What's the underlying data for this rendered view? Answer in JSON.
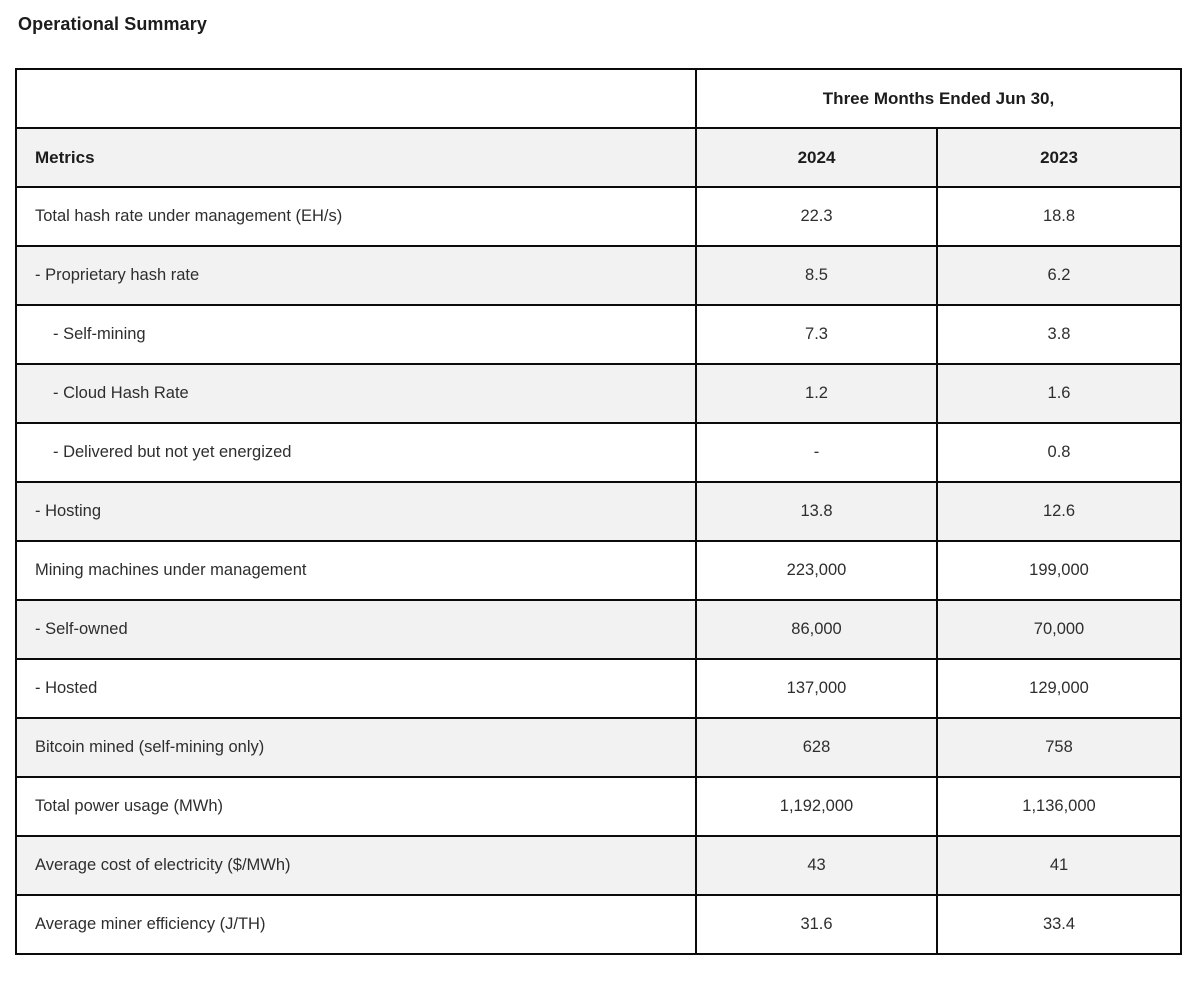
{
  "page": {
    "title": "Operational Summary"
  },
  "table": {
    "period_header": "Three Months Ended Jun 30,",
    "columns": [
      "Metrics",
      "2024",
      "2023"
    ],
    "rows": [
      {
        "label": "Total hash rate under management (EH/s)",
        "indent": 0,
        "values": [
          "22.3",
          "18.8"
        ]
      },
      {
        "label": "- Proprietary hash rate",
        "indent": 0,
        "values": [
          "8.5",
          "6.2"
        ]
      },
      {
        "label": "- Self-mining",
        "indent": 1,
        "values": [
          "7.3",
          "3.8"
        ]
      },
      {
        "label": "- Cloud Hash Rate",
        "indent": 1,
        "values": [
          "1.2",
          "1.6"
        ]
      },
      {
        "label": "- Delivered but not yet energized",
        "indent": 1,
        "values": [
          "-",
          "0.8"
        ]
      },
      {
        "label": "- Hosting",
        "indent": 0,
        "values": [
          "13.8",
          "12.6"
        ]
      },
      {
        "label": "Mining machines under management",
        "indent": 0,
        "values": [
          "223,000",
          "199,000"
        ]
      },
      {
        "label": "- Self-owned",
        "indent": 0,
        "values": [
          "86,000",
          "70,000"
        ]
      },
      {
        "label": "- Hosted",
        "indent": 0,
        "values": [
          "137,000",
          "129,000"
        ]
      },
      {
        "label": "Bitcoin mined (self-mining only)",
        "indent": 0,
        "values": [
          "628",
          "758"
        ]
      },
      {
        "label": "Total power usage (MWh)",
        "indent": 0,
        "values": [
          "1,192,000",
          "1,136,000"
        ]
      },
      {
        "label": "Average cost of electricity ($/MWh)",
        "indent": 0,
        "values": [
          "43",
          "41"
        ]
      },
      {
        "label": "Average miner efficiency (J/TH)",
        "indent": 0,
        "values": [
          "31.6",
          "33.4"
        ]
      }
    ]
  },
  "colors": {
    "border": "#0b0b0b",
    "alt_row_bg": "#f2f2f2",
    "header_bg": "#f2f2f2",
    "text": "#2e2e2e",
    "title_text": "#1c1c1c",
    "page_bg": "#ffffff"
  }
}
